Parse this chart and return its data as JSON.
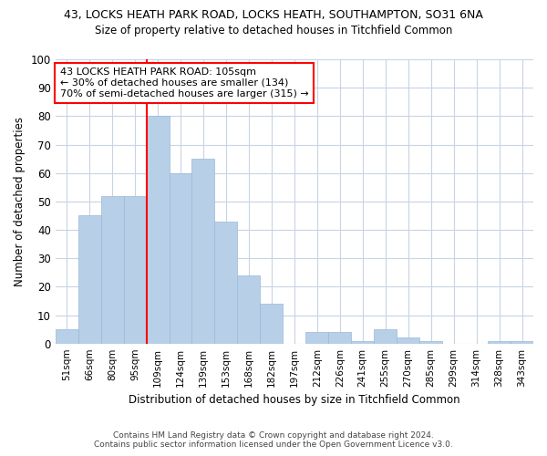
{
  "title1": "43, LOCKS HEATH PARK ROAD, LOCKS HEATH, SOUTHAMPTON, SO31 6NA",
  "title2": "Size of property relative to detached houses in Titchfield Common",
  "xlabel": "Distribution of detached houses by size in Titchfield Common",
  "ylabel": "Number of detached properties",
  "footer1": "Contains HM Land Registry data © Crown copyright and database right 2024.",
  "footer2": "Contains public sector information licensed under the Open Government Licence v3.0.",
  "bin_labels": [
    "51sqm",
    "66sqm",
    "80sqm",
    "95sqm",
    "109sqm",
    "124sqm",
    "139sqm",
    "153sqm",
    "168sqm",
    "182sqm",
    "197sqm",
    "212sqm",
    "226sqm",
    "241sqm",
    "255sqm",
    "270sqm",
    "285sqm",
    "299sqm",
    "314sqm",
    "328sqm",
    "343sqm"
  ],
  "bar_values": [
    5,
    45,
    52,
    52,
    80,
    60,
    65,
    43,
    24,
    14,
    0,
    4,
    4,
    1,
    5,
    2,
    1,
    0,
    0,
    1,
    1
  ],
  "bar_color": "#b8cfe8",
  "bar_edge_color": "#9ab8d8",
  "vline_x_index": 4,
  "vline_color": "red",
  "annotation_text": "43 LOCKS HEATH PARK ROAD: 105sqm\n← 30% of detached houses are smaller (134)\n70% of semi-detached houses are larger (315) →",
  "annotation_box_color": "white",
  "annotation_box_edge_color": "red",
  "ylim": [
    0,
    100
  ],
  "yticks": [
    0,
    10,
    20,
    30,
    40,
    50,
    60,
    70,
    80,
    90,
    100
  ],
  "grid_color": "#c8d4e4",
  "background_color": "#ffffff"
}
